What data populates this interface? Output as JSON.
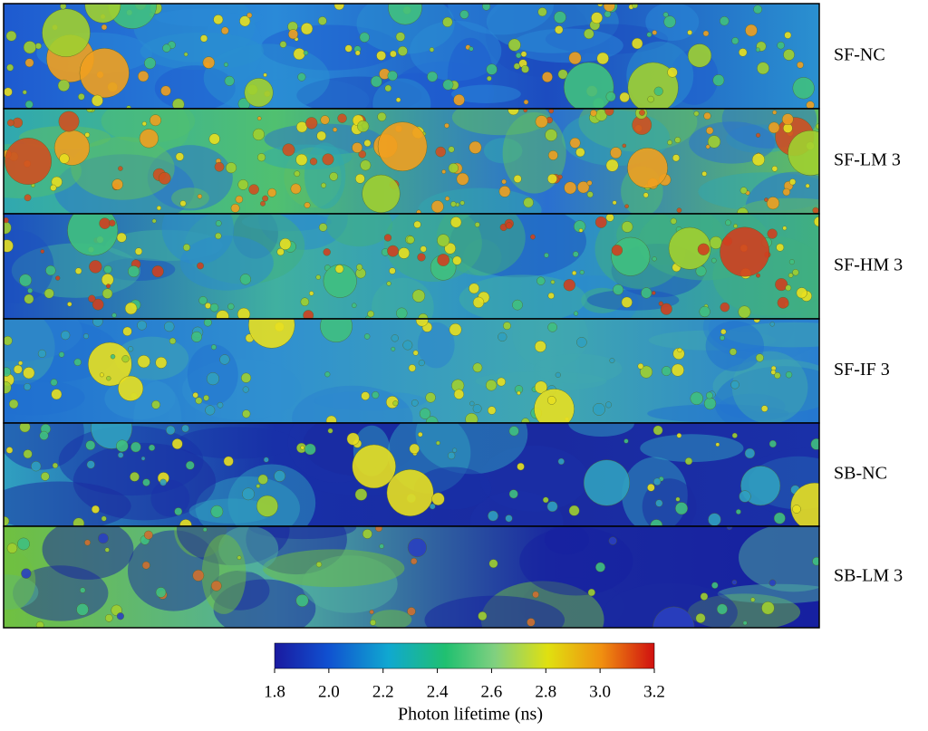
{
  "figure": {
    "panels": [
      {
        "label": "SF-NC"
      },
      {
        "label": "SF-LM 3"
      },
      {
        "label": "SF-HM 3"
      },
      {
        "label": "SF-IF 3"
      },
      {
        "label": "SB-NC"
      },
      {
        "label": "SB-LM 3"
      }
    ],
    "colorbar": {
      "label": "Photon lifetime  (ns)",
      "lim": [
        1.8,
        3.2
      ],
      "ticks": [
        1.8,
        {
          "value": 2,
          "label": "2.0"
        },
        2.2,
        2.4,
        2.6,
        2.8,
        {
          "value": 3,
          "label": "3.0"
        },
        3.2
      ]
    }
  }
}
